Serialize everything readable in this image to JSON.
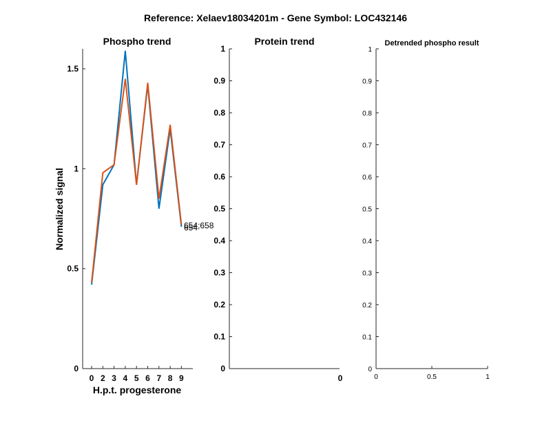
{
  "figure_title": "Reference:  Xelaev18034201m - Gene Symbol:  LOC432146",
  "chart_data": [
    {
      "type": "line",
      "title": "Phospho trend",
      "xlabel": "H.p.t. progesterone",
      "ylabel": "Normalized signal",
      "x": [
        0,
        2,
        3,
        4,
        5,
        6,
        7,
        8,
        9
      ],
      "xticks": [
        "0",
        "2",
        "3",
        "4",
        "5",
        "6",
        "7",
        "8",
        "9"
      ],
      "yticks": [
        "0",
        "0.5",
        "1",
        "1.5"
      ],
      "ylim": [
        0,
        1.6
      ],
      "series": [
        {
          "name": "654",
          "color": "#0072BD",
          "values": [
            0.42,
            0.92,
            1.02,
            1.59,
            0.92,
            1.42,
            0.8,
            1.2,
            0.71
          ]
        },
        {
          "name": "654;658",
          "color": "#D95319",
          "values": [
            0.43,
            0.98,
            1.02,
            1.45,
            0.92,
            1.43,
            0.85,
            1.22,
            0.72
          ]
        }
      ],
      "annotations": [
        "654;658",
        "654"
      ]
    },
    {
      "type": "line",
      "title": "Protein trend",
      "xticks": [
        "0"
      ],
      "yticks": [
        "0",
        "0.1",
        "0.2",
        "0.3",
        "0.4",
        "0.5",
        "0.6",
        "0.7",
        "0.8",
        "0.9",
        "1"
      ],
      "ylim": [
        0,
        1
      ],
      "series": []
    },
    {
      "type": "line",
      "title": "Detrended phospho result",
      "xticks": [
        "0",
        "0.5",
        "1"
      ],
      "xlim": [
        0,
        1
      ],
      "yticks": [
        "0",
        "0.1",
        "0.2",
        "0.3",
        "0.4",
        "0.5",
        "0.6",
        "0.7",
        "0.8",
        "0.9",
        "1"
      ],
      "ylim": [
        0,
        1
      ],
      "series": []
    }
  ]
}
